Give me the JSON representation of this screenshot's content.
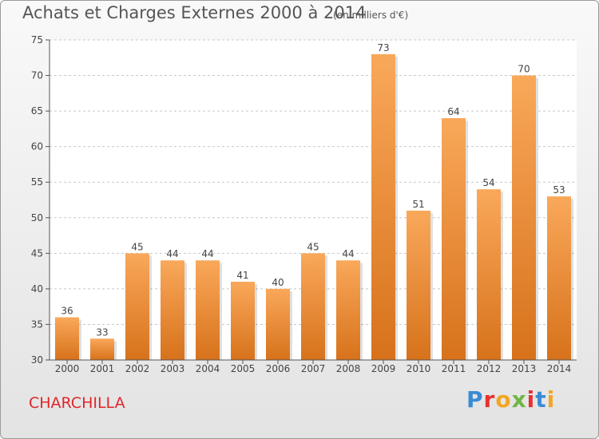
{
  "header": {
    "title": "Achats et Charges Externes 2000 à 2014",
    "subtitle": "(en milliers d'€)"
  },
  "footer": {
    "commune": "CHARCHILLA",
    "logo": "Proxiti",
    "logo_colors": [
      "#3a8bd5",
      "#e8322f",
      "#f3a523",
      "#6fb643",
      "#e8322f",
      "#3a8bd5",
      "#f3a523"
    ]
  },
  "chart_data": {
    "type": "bar",
    "categories": [
      "2000",
      "2001",
      "2002",
      "2003",
      "2004",
      "2005",
      "2006",
      "2007",
      "2008",
      "2009",
      "2010",
      "2011",
      "2012",
      "2013",
      "2014"
    ],
    "values": [
      36,
      33,
      45,
      44,
      44,
      41,
      40,
      45,
      44,
      73,
      51,
      64,
      54,
      70,
      53
    ],
    "title": "Achats et Charges Externes 2000 à 2014",
    "subtitle": "(en milliers d'€)",
    "xlabel": "",
    "ylabel": "",
    "ylim": [
      30,
      75
    ],
    "yticks": [
      30,
      35,
      40,
      45,
      50,
      55,
      60,
      65,
      70,
      75
    ],
    "grid": "horizontal dashed",
    "legend": "none",
    "bar_color_top": "#f9a85a",
    "bar_color_bottom": "#d7721b"
  }
}
